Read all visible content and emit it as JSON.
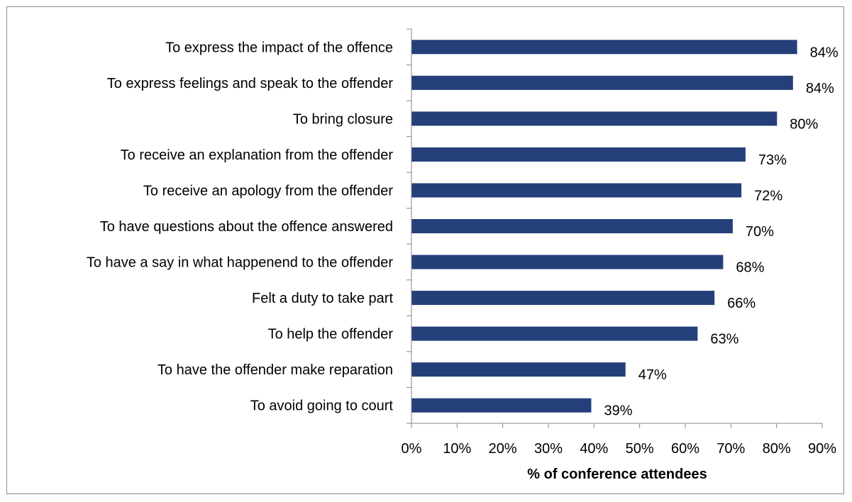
{
  "chart_data": {
    "type": "bar",
    "orientation": "horizontal",
    "categories": [
      "To express the impact of the offence",
      "To express feelings and speak to the offender",
      "To bring closure",
      "To receive an explanation from the offender",
      "To receive an apology from the offender",
      "To have questions about the offence answered",
      "To have a say in what happenend to the offender",
      "Felt  a duty to take part",
      "To help the offender",
      "To have the offender make reparation",
      "To avoid going to court"
    ],
    "values": [
      84.5,
      83.6,
      80.1,
      73.2,
      72.3,
      70.4,
      68.3,
      66.4,
      62.7,
      46.9,
      39.4
    ],
    "data_labels": [
      "84%",
      "84%",
      "80%",
      "73%",
      "72%",
      "70%",
      "68%",
      "66%",
      "63%",
      "47%",
      "39%"
    ],
    "xlabel": "% of conference attendees",
    "ylabel": "",
    "title": "",
    "xlim": [
      0,
      90
    ],
    "x_ticks": [
      0,
      10,
      20,
      30,
      40,
      50,
      60,
      70,
      80,
      90
    ],
    "x_tick_labels": [
      "0%",
      "10%",
      "20%",
      "30%",
      "40%",
      "50%",
      "60%",
      "70%",
      "80%",
      "90%"
    ],
    "bar_color": "#243f7a",
    "grid": false,
    "legend": "none"
  }
}
